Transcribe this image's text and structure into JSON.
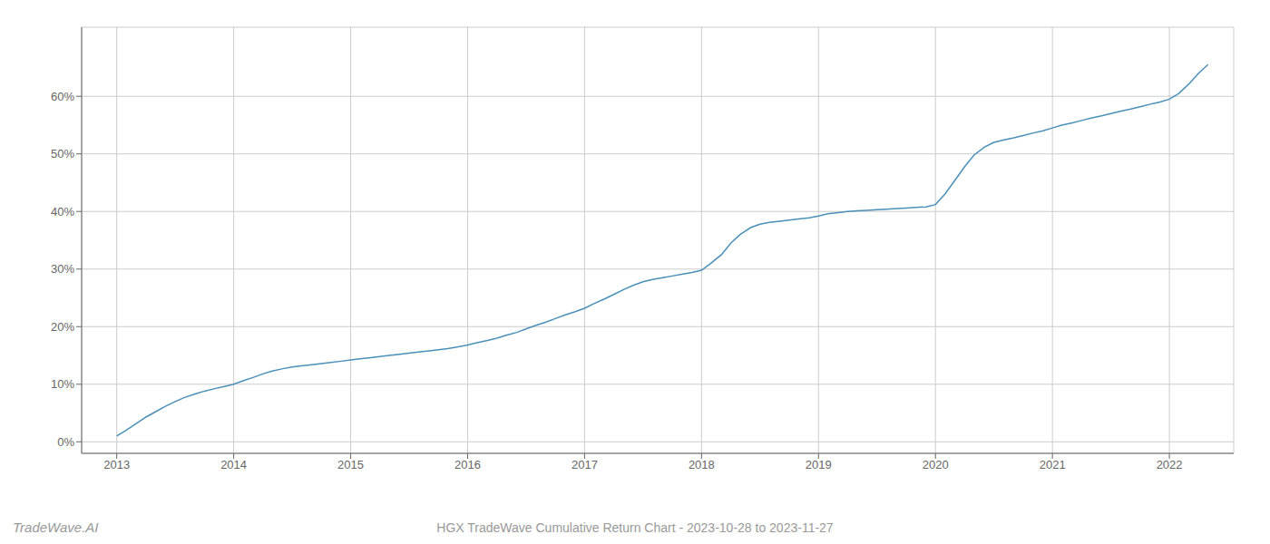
{
  "chart_data": {
    "type": "line",
    "title": "HGX TradeWave Cumulative Return Chart - 2023-10-28 to 2023-11-27",
    "annotations": [
      "TradeWave.AI"
    ],
    "color": "#4a90b8",
    "grid": true,
    "xlim": [
      2012.7,
      2022.55
    ],
    "xticks": [
      2013,
      2014,
      2015,
      2016,
      2017,
      2018,
      2019,
      2020,
      2021,
      2022
    ],
    "ylim": [
      -0.02,
      0.72
    ],
    "yticks": [
      {
        "value": 0.0,
        "label": "0%"
      },
      {
        "value": 0.1,
        "label": "10%"
      },
      {
        "value": 0.2,
        "label": "20%"
      },
      {
        "value": 0.3,
        "label": "30%"
      },
      {
        "value": 0.4,
        "label": "40%"
      },
      {
        "value": 0.5,
        "label": "50%"
      },
      {
        "value": 0.6,
        "label": "60%"
      }
    ],
    "x": [
      2013.0,
      2013.08,
      2013.17,
      2013.25,
      2013.33,
      2013.42,
      2013.5,
      2013.58,
      2013.67,
      2013.75,
      2013.83,
      2013.92,
      2014.0,
      2014.08,
      2014.17,
      2014.25,
      2014.33,
      2014.42,
      2014.5,
      2014.58,
      2014.67,
      2014.75,
      2014.83,
      2014.92,
      2015.0,
      2015.08,
      2015.17,
      2015.25,
      2015.33,
      2015.42,
      2015.5,
      2015.58,
      2015.67,
      2015.75,
      2015.83,
      2015.92,
      2016.0,
      2016.08,
      2016.17,
      2016.25,
      2016.33,
      2016.42,
      2016.5,
      2016.58,
      2016.67,
      2016.75,
      2016.83,
      2016.92,
      2017.0,
      2017.08,
      2017.17,
      2017.25,
      2017.33,
      2017.42,
      2017.5,
      2017.58,
      2017.67,
      2017.75,
      2017.83,
      2017.92,
      2018.0,
      2018.08,
      2018.17,
      2018.25,
      2018.33,
      2018.42,
      2018.5,
      2018.58,
      2018.67,
      2018.75,
      2018.83,
      2018.92,
      2019.0,
      2019.08,
      2019.17,
      2019.25,
      2019.33,
      2019.42,
      2019.5,
      2019.58,
      2019.67,
      2019.75,
      2019.83,
      2019.92,
      2020.0,
      2020.08,
      2020.17,
      2020.25,
      2020.33,
      2020.42,
      2020.5,
      2020.58,
      2020.67,
      2020.75,
      2020.83,
      2020.92,
      2021.0,
      2021.08,
      2021.17,
      2021.25,
      2021.33,
      2021.42,
      2021.5,
      2021.58,
      2021.67,
      2021.75,
      2021.83,
      2021.92,
      2022.0,
      2022.08,
      2022.17,
      2022.25,
      2022.33
    ],
    "values": [
      0.01,
      0.02,
      0.032,
      0.043,
      0.052,
      0.062,
      0.07,
      0.077,
      0.083,
      0.088,
      0.092,
      0.096,
      0.1,
      0.106,
      0.112,
      0.118,
      0.123,
      0.127,
      0.13,
      0.132,
      0.134,
      0.136,
      0.138,
      0.14,
      0.142,
      0.144,
      0.146,
      0.148,
      0.15,
      0.152,
      0.154,
      0.156,
      0.158,
      0.16,
      0.162,
      0.165,
      0.168,
      0.172,
      0.176,
      0.18,
      0.185,
      0.19,
      0.196,
      0.202,
      0.208,
      0.214,
      0.22,
      0.226,
      0.232,
      0.24,
      0.248,
      0.256,
      0.264,
      0.272,
      0.278,
      0.282,
      0.285,
      0.288,
      0.291,
      0.294,
      0.298,
      0.31,
      0.325,
      0.345,
      0.36,
      0.372,
      0.378,
      0.381,
      0.383,
      0.385,
      0.387,
      0.389,
      0.392,
      0.396,
      0.398,
      0.4,
      0.401,
      0.402,
      0.403,
      0.404,
      0.405,
      0.406,
      0.407,
      0.408,
      0.412,
      0.43,
      0.455,
      0.478,
      0.498,
      0.512,
      0.52,
      0.524,
      0.528,
      0.532,
      0.536,
      0.54,
      0.545,
      0.55,
      0.554,
      0.558,
      0.562,
      0.566,
      0.57,
      0.574,
      0.578,
      0.582,
      0.586,
      0.59,
      0.595,
      0.605,
      0.622,
      0.64,
      0.655
    ]
  }
}
